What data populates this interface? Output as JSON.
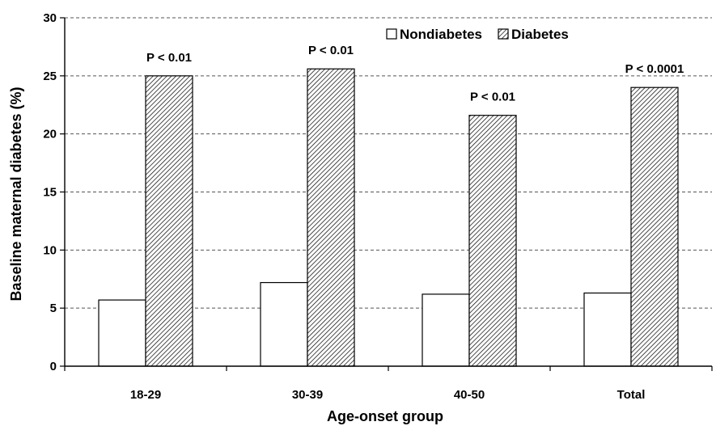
{
  "chart_data": {
    "type": "bar",
    "xlabel": "Age-onset group",
    "ylabel": "Baseline maternal diabetes (%)",
    "ylim": [
      0,
      30
    ],
    "yticks": [
      0,
      5,
      10,
      15,
      20,
      25,
      30
    ],
    "grid": true,
    "legend_position": "top-right",
    "categories": [
      "18-29",
      "30-39",
      "40-50",
      "Total"
    ],
    "series": [
      {
        "name": "Nondiabetes",
        "values": [
          5.7,
          7.2,
          6.2,
          6.3
        ],
        "fill": "#ffffff"
      },
      {
        "name": "Diabetes",
        "values": [
          25.0,
          25.6,
          21.6,
          24.0
        ],
        "fill": "hatched"
      }
    ],
    "annotations": [
      "P < 0.01",
      "P < 0.01",
      "P < 0.01",
      "P < 0.0001"
    ]
  }
}
